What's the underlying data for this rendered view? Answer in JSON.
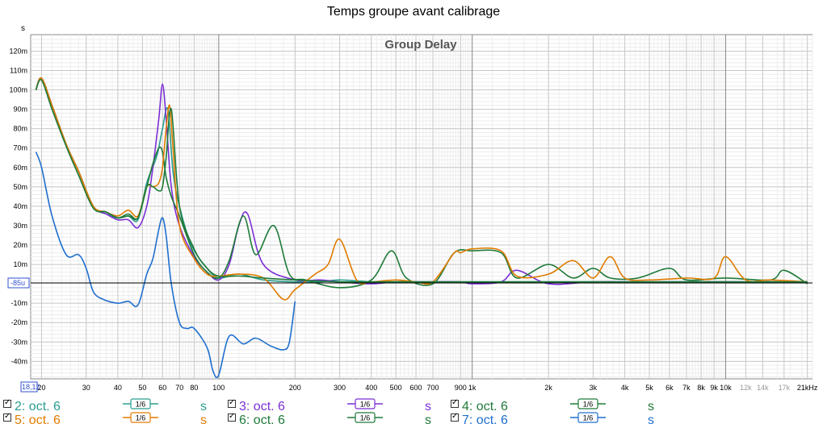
{
  "title": "Temps groupe avant calibrage",
  "chart_data": {
    "type": "line",
    "title": "Group Delay",
    "ylabel_unit": "s",
    "x_scale": "log",
    "xlim": [
      18.12,
      22000
    ],
    "ylim": [
      -0.049,
      0.1285
    ],
    "x_start_label": "18,12",
    "cursor_label": "-85u",
    "x_ticks": [
      {
        "v": 20,
        "label": "20"
      },
      {
        "v": 30,
        "label": "30"
      },
      {
        "v": 40,
        "label": "40"
      },
      {
        "v": 50,
        "label": "50"
      },
      {
        "v": 60,
        "label": "60"
      },
      {
        "v": 70,
        "label": "70"
      },
      {
        "v": 80,
        "label": "80"
      },
      {
        "v": 100,
        "label": "100"
      },
      {
        "v": 200,
        "label": "200"
      },
      {
        "v": 300,
        "label": "300"
      },
      {
        "v": 400,
        "label": "400"
      },
      {
        "v": 500,
        "label": "500"
      },
      {
        "v": 600,
        "label": "600"
      },
      {
        "v": 700,
        "label": "700"
      },
      {
        "v": 900,
        "label": "900"
      },
      {
        "v": 1000,
        "label": "1k"
      },
      {
        "v": 2000,
        "label": "2k"
      },
      {
        "v": 3000,
        "label": "3k"
      },
      {
        "v": 4000,
        "label": "4k"
      },
      {
        "v": 5000,
        "label": "5k"
      },
      {
        "v": 6000,
        "label": "6k"
      },
      {
        "v": 7000,
        "label": "7k"
      },
      {
        "v": 8000,
        "label": "8k"
      },
      {
        "v": 9000,
        "label": "9k"
      },
      {
        "v": 10000,
        "label": "10k"
      },
      {
        "v": 12000,
        "label": "12k"
      },
      {
        "v": 14000,
        "label": "14k"
      },
      {
        "v": 17000,
        "label": "17k"
      },
      {
        "v": 21000,
        "label": "21kHz"
      }
    ],
    "y_ticks": [
      {
        "v": 0.12,
        "label": "120m"
      },
      {
        "v": 0.11,
        "label": "110m"
      },
      {
        "v": 0.1,
        "label": "100m"
      },
      {
        "v": 0.09,
        "label": "90m"
      },
      {
        "v": 0.08,
        "label": "80m"
      },
      {
        "v": 0.07,
        "label": "70m"
      },
      {
        "v": 0.06,
        "label": "60m"
      },
      {
        "v": 0.05,
        "label": "50m"
      },
      {
        "v": 0.04,
        "label": "40m"
      },
      {
        "v": 0.03,
        "label": "30m"
      },
      {
        "v": 0.02,
        "label": "20m"
      },
      {
        "v": 0.01,
        "label": "10m"
      },
      {
        "v": -0.01,
        "label": "-10m"
      },
      {
        "v": -0.02,
        "label": "-20m"
      },
      {
        "v": -0.03,
        "label": "-30m"
      },
      {
        "v": -0.04,
        "label": "-40m"
      }
    ],
    "series": [
      {
        "name": "2: oct. 6",
        "color": "#2a9d8f",
        "x": [
          19,
          20,
          22,
          25,
          28,
          32,
          36,
          40,
          44,
          48,
          52,
          57,
          60,
          63,
          66,
          70,
          78,
          90,
          100,
          120,
          150,
          200,
          250,
          300,
          400,
          500,
          700,
          1000,
          1500,
          2000,
          3000,
          5000,
          8000,
          10000,
          15000,
          21000
        ],
        "y": [
          0.1,
          0.106,
          0.092,
          0.072,
          0.058,
          0.04,
          0.036,
          0.034,
          0.035,
          0.033,
          0.052,
          0.066,
          0.08,
          0.09,
          0.058,
          0.04,
          0.02,
          0.008,
          0.003,
          0.005,
          0.002,
          0.001,
          0.001,
          0.002,
          0.001,
          0.001,
          0.001,
          0.001,
          0.001,
          0.001,
          0.001,
          0.001,
          0.001,
          0.001,
          0.001,
          0.001
        ]
      },
      {
        "name": "3: oct. 6",
        "color": "#7b2fd4",
        "x": [
          19,
          20,
          22,
          25,
          28,
          32,
          36,
          40,
          44,
          48,
          52,
          55,
          58,
          60,
          62,
          65,
          70,
          80,
          90,
          100,
          110,
          120,
          130,
          150,
          200,
          250,
          300,
          400,
          500,
          700,
          900,
          1000,
          1300,
          1500,
          2000,
          3000,
          5000,
          8000,
          10000,
          15000,
          21000
        ],
        "y": [
          0.1,
          0.106,
          0.092,
          0.072,
          0.058,
          0.04,
          0.036,
          0.033,
          0.033,
          0.029,
          0.04,
          0.06,
          0.085,
          0.103,
          0.085,
          0.05,
          0.03,
          0.014,
          0.006,
          0.002,
          0.01,
          0.03,
          0.036,
          0.01,
          0.002,
          0.002,
          0.001,
          0.0,
          0.001,
          0.001,
          0.001,
          0.0,
          0.001,
          0.007,
          0.0,
          0.001,
          0.001,
          0.001,
          0.001,
          0.001,
          0.001
        ]
      },
      {
        "name": "4: oct. 6",
        "color": "#1f7a3a",
        "x": [
          19,
          20,
          22,
          25,
          28,
          32,
          36,
          40,
          44,
          48,
          52,
          55,
          58,
          60,
          62,
          65,
          70,
          80,
          90,
          100,
          110,
          125,
          140,
          165,
          190,
          220,
          300,
          400,
          480,
          550,
          700,
          850,
          1000,
          1300,
          1500,
          2000,
          2500,
          3000,
          3500,
          4500,
          6000,
          7000,
          10000,
          15000,
          17000,
          21000
        ],
        "y": [
          0.1,
          0.106,
          0.092,
          0.072,
          0.058,
          0.04,
          0.037,
          0.034,
          0.035,
          0.034,
          0.05,
          0.062,
          0.07,
          0.068,
          0.055,
          0.045,
          0.035,
          0.015,
          0.006,
          0.003,
          0.012,
          0.035,
          0.015,
          0.03,
          0.005,
          0.002,
          -0.002,
          0.002,
          0.017,
          0.003,
          0.0,
          0.016,
          0.017,
          0.016,
          0.003,
          0.01,
          0.003,
          0.008,
          0.003,
          0.003,
          0.008,
          0.002,
          0.003,
          0.002,
          0.007,
          0.0
        ]
      },
      {
        "name": "5: oct. 6",
        "color": "#e07b00",
        "x": [
          19,
          20,
          22,
          25,
          28,
          32,
          36,
          40,
          44,
          48,
          52,
          55,
          58,
          60,
          62,
          64,
          66,
          70,
          80,
          90,
          100,
          120,
          150,
          180,
          200,
          240,
          270,
          300,
          350,
          400,
          500,
          600,
          700,
          850,
          900,
          1000,
          1300,
          1500,
          2000,
          2500,
          3000,
          3500,
          4000,
          5000,
          7000,
          9000,
          10000,
          12000,
          15000,
          21000
        ],
        "y": [
          0.1,
          0.106,
          0.092,
          0.072,
          0.058,
          0.04,
          0.037,
          0.035,
          0.038,
          0.035,
          0.05,
          0.05,
          0.052,
          0.06,
          0.08,
          0.092,
          0.07,
          0.03,
          0.013,
          0.005,
          0.004,
          0.005,
          0.003,
          -0.008,
          -0.003,
          0.005,
          0.01,
          0.023,
          0.002,
          0.001,
          0.002,
          0.001,
          0.001,
          0.016,
          0.016,
          0.018,
          0.017,
          0.004,
          0.005,
          0.012,
          0.003,
          0.014,
          0.003,
          0.002,
          0.003,
          0.003,
          0.014,
          0.002,
          0.002,
          0.001
        ]
      },
      {
        "name": "6: oct. 6",
        "color": "#1f7a3a",
        "x": [
          19,
          20,
          22,
          25,
          28,
          32,
          36,
          40,
          44,
          48,
          52,
          55,
          58,
          60,
          62,
          65,
          70,
          80,
          90,
          100,
          120,
          150,
          200,
          300,
          400,
          500,
          700,
          1000,
          1500,
          2000,
          3000,
          5000,
          8000,
          10000,
          15000,
          21000
        ],
        "y": [
          0.1,
          0.105,
          0.09,
          0.071,
          0.056,
          0.039,
          0.037,
          0.034,
          0.036,
          0.034,
          0.05,
          0.05,
          0.048,
          0.05,
          0.065,
          0.09,
          0.04,
          0.018,
          0.008,
          0.004,
          0.004,
          0.003,
          0.002,
          0.001,
          0.001,
          0.001,
          0.001,
          0.001,
          0.001,
          0.001,
          0.001,
          0.001,
          0.001,
          0.001,
          0.001,
          0.001
        ]
      },
      {
        "name": "7: oct. 6",
        "color": "#1f6fcf",
        "x": [
          19,
          20,
          22,
          25,
          28,
          30,
          32,
          35,
          40,
          44,
          48,
          52,
          55,
          58,
          60,
          62,
          65,
          70,
          75,
          80,
          90,
          95,
          100,
          110,
          125,
          140,
          160,
          180,
          190,
          200
        ],
        "y": [
          0.068,
          0.06,
          0.035,
          0.015,
          0.015,
          0.008,
          -0.004,
          -0.008,
          -0.01,
          -0.009,
          -0.011,
          0.005,
          0.013,
          0.028,
          0.034,
          0.025,
          0.0,
          -0.02,
          -0.023,
          -0.023,
          -0.033,
          -0.045,
          -0.047,
          -0.027,
          -0.031,
          -0.028,
          -0.032,
          -0.034,
          -0.03,
          -0.009
        ]
      }
    ]
  },
  "legend": [
    {
      "label": "2: oct. 6",
      "smoothing": "1/6",
      "unit": "s",
      "color": "#2a9d8f"
    },
    {
      "label": "3: oct. 6",
      "smoothing": "1/6",
      "unit": "s",
      "color": "#7b2fd4"
    },
    {
      "label": "4: oct. 6",
      "smoothing": "1/6",
      "unit": "s",
      "color": "#1f7a3a"
    },
    {
      "label": "5: oct. 6",
      "smoothing": "1/6",
      "unit": "s",
      "color": "#e07b00"
    },
    {
      "label": "6: oct. 6",
      "smoothing": "1/6",
      "unit": "s",
      "color": "#1f7a3a"
    },
    {
      "label": "7: oct. 6",
      "smoothing": "1/6",
      "unit": "s",
      "color": "#1f6fcf"
    }
  ]
}
